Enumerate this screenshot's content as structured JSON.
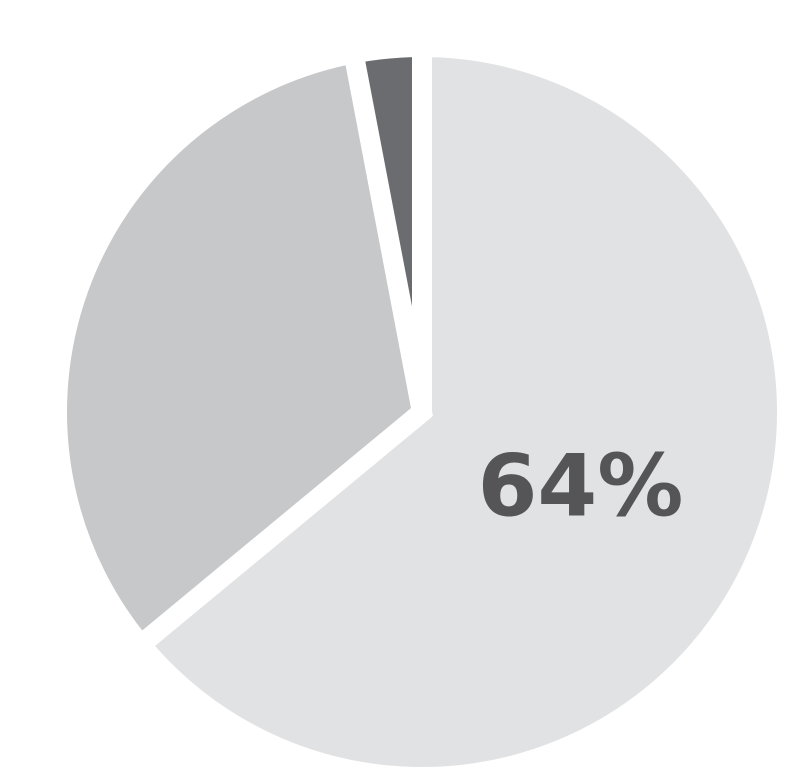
{
  "chart_data": {
    "type": "pie",
    "slices": [
      {
        "value": 64,
        "label": "64%",
        "color": "#e1e2e4"
      },
      {
        "value": 33,
        "label": "",
        "color": "#c7c8ca"
      },
      {
        "value": 3,
        "label": "",
        "color": "#6b6c6f"
      }
    ],
    "start_angle_deg": 0,
    "direction": "clockwise",
    "legend": "none",
    "title": ""
  }
}
